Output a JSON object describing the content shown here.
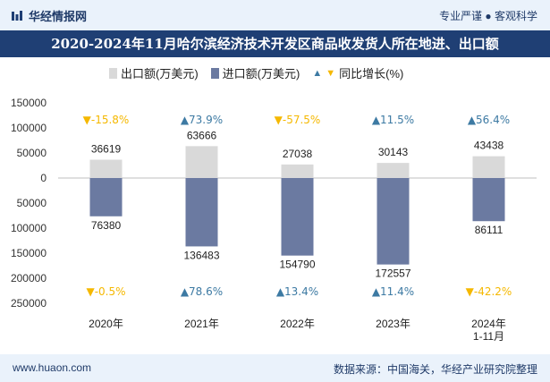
{
  "header": {
    "brand": "华经情报网",
    "tagline": "专业严谨 ● 客观科学",
    "title": "2020-2024年11月哈尔滨经济技术开发区商品收发货人所在地进、出口额"
  },
  "legend": {
    "export": "出口额(万美元)",
    "import": "进口额(万美元)",
    "yoy": "同比增长(%)"
  },
  "footer": {
    "site": "www.huaon.com",
    "source": "数据来源：中国海关，华经产业研究院整理"
  },
  "colors": {
    "export": "#d9d9d9",
    "import": "#6b7aa1",
    "up": "#3d7aa3",
    "down": "#f5b800",
    "title_bg": "#1f3f74"
  },
  "chart_data": {
    "type": "bar",
    "categories": [
      "2020年",
      "2021年",
      "2022年",
      "2023年",
      "2024年\n1-11月"
    ],
    "series": [
      {
        "name": "出口额(万美元)",
        "values": [
          36619,
          63666,
          27038,
          30143,
          43438
        ]
      },
      {
        "name": "进口额(万美元)",
        "values": [
          -76380,
          -136483,
          -154790,
          -172557,
          -86111
        ]
      }
    ],
    "export_labels": [
      "36619",
      "63666",
      "27038",
      "30143",
      "43438"
    ],
    "import_labels": [
      "76380",
      "136483",
      "154790",
      "172557",
      "86111"
    ],
    "export_yoy": [
      {
        "dir": "down",
        "text": "-15.8%"
      },
      {
        "dir": "up",
        "text": "73.9%"
      },
      {
        "dir": "down",
        "text": "-57.5%"
      },
      {
        "dir": "up",
        "text": "11.5%"
      },
      {
        "dir": "up",
        "text": "56.4%"
      }
    ],
    "import_yoy": [
      {
        "dir": "down",
        "text": "-0.5%"
      },
      {
        "dir": "up",
        "text": "78.6%"
      },
      {
        "dir": "up",
        "text": "13.4%"
      },
      {
        "dir": "up",
        "text": "11.4%"
      },
      {
        "dir": "down",
        "text": "-42.2%"
      }
    ],
    "yticks": [
      150000,
      100000,
      50000,
      0,
      -50000,
      -100000,
      -150000,
      -200000,
      -250000
    ],
    "ytick_labels": [
      "150000",
      "100000",
      "50000",
      "0",
      "50000",
      "100000",
      "150000",
      "200000",
      "250000"
    ],
    "ylim": [
      -250000,
      150000
    ]
  }
}
